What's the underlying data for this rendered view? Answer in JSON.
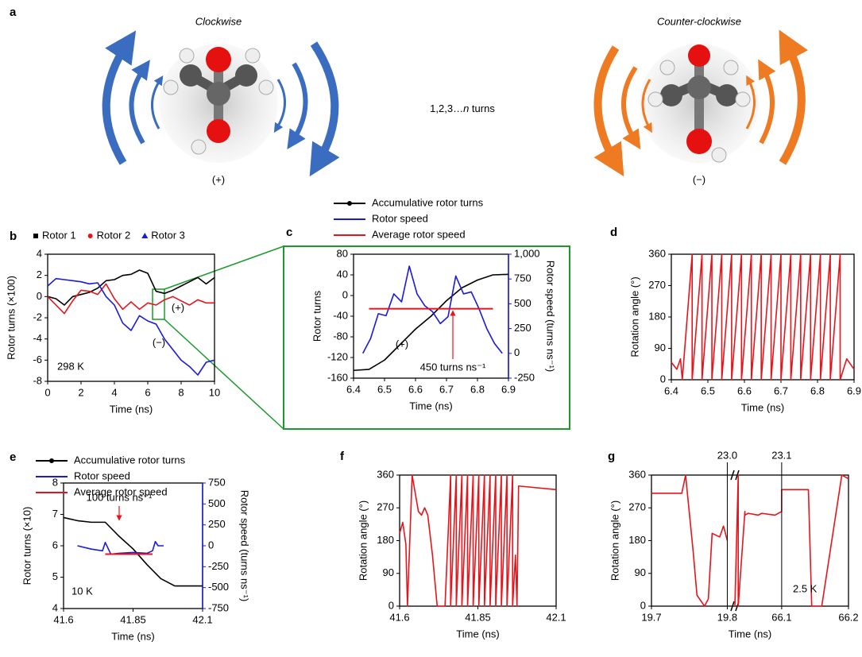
{
  "panel_a": {
    "label": "a",
    "left_title": "Clockwise",
    "right_title": "Counter-clockwise",
    "middle_prefix": "1,2,3…",
    "middle_italic": "n",
    "middle_suffix": " turns",
    "left_sign": "(+)",
    "right_sign": "(−)"
  },
  "chart_data": [
    {
      "type": "line",
      "label": "b",
      "xlabel": "Time (ns)",
      "ylabel": "Rotor turns (×100)",
      "xlim": [
        0,
        10
      ],
      "xticks": [
        0,
        2,
        4,
        6,
        8,
        10
      ],
      "ylim": [
        -8,
        4
      ],
      "yticks": [
        -8,
        -6,
        -4,
        -2,
        0,
        2,
        4
      ],
      "series": [
        {
          "name": "Rotor 1",
          "color": "#000000",
          "marker": "square",
          "x": [
            0,
            0.5,
            1,
            1.5,
            2,
            2.5,
            3,
            3.5,
            4,
            4.5,
            5,
            5.5,
            6,
            6.5,
            7,
            7.5,
            8,
            8.5,
            9,
            9.5,
            10
          ],
          "values": [
            0,
            -0.2,
            -0.8,
            0,
            0.2,
            0.4,
            0.8,
            1.5,
            1.6,
            2,
            2.1,
            2.5,
            2.2,
            0.5,
            0.3,
            0.6,
            1,
            1.4,
            1.8,
            1.2,
            1.8
          ]
        },
        {
          "name": "Rotor 2",
          "color": "#e8141c",
          "marker": "circle",
          "x": [
            0,
            0.5,
            1,
            1.5,
            2,
            2.5,
            3,
            3.5,
            4,
            4.5,
            5,
            5.5,
            6,
            6.5,
            7,
            7.5,
            8,
            8.5,
            9,
            9.5,
            10
          ],
          "values": [
            0,
            -0.8,
            -1.6,
            -0.4,
            0.6,
            0.5,
            0.2,
            1.2,
            -0.2,
            -1.2,
            -0.5,
            -1.2,
            -0.6,
            -0.8,
            -0.3,
            0,
            -0.4,
            -0.8,
            -0.3,
            -0.6,
            -0.6
          ]
        },
        {
          "name": "Rotor 3",
          "color": "#1a1adc",
          "marker": "triangle",
          "x": [
            0,
            0.5,
            1,
            1.5,
            2,
            2.5,
            3,
            3.5,
            4,
            4.5,
            5,
            5.5,
            6,
            6.5,
            7,
            7.5,
            8,
            8.5,
            9,
            9.5,
            10
          ],
          "values": [
            1,
            1.7,
            1.6,
            1.5,
            1.4,
            1.2,
            1.3,
            0,
            -0.8,
            -2.5,
            -3.2,
            -1.8,
            -2.3,
            -2.6,
            -4,
            -5,
            -6,
            -6.6,
            -7.4,
            -6.2,
            -6
          ]
        }
      ],
      "annotations": [
        {
          "text": "298 K",
          "color": "#000000"
        },
        {
          "text": "(+)",
          "color": "#e8141c"
        },
        {
          "text": "(−)",
          "color": "#1a1adc"
        }
      ]
    },
    {
      "type": "line",
      "label": "c",
      "xlabel": "Time (ns)",
      "ylabel": "Rotor turns",
      "y2label": "Rotor speed (turns ns⁻¹)",
      "y2color": "#1a1adc",
      "xlim": [
        6.4,
        6.9
      ],
      "xticks": [
        6.4,
        6.5,
        6.6,
        6.7,
        6.8,
        6.9
      ],
      "ylim": [
        -160,
        80
      ],
      "yticks": [
        -160,
        -120,
        -80,
        -40,
        0,
        40,
        80
      ],
      "y2lim": [
        -250,
        1000
      ],
      "y2ticks": [
        -250,
        0,
        250,
        500,
        750,
        {
          "value": 1000,
          "label": "1,000"
        }
      ],
      "series": [
        {
          "name": "Accumulative rotor turns",
          "color": "#000000",
          "marker": "dot",
          "x": [
            6.4,
            6.45,
            6.5,
            6.55,
            6.6,
            6.65,
            6.7,
            6.75,
            6.8,
            6.85,
            6.9
          ],
          "values": [
            -145,
            -143,
            -125,
            -95,
            -65,
            -40,
            -10,
            15,
            30,
            40,
            41
          ]
        },
        {
          "name": "Rotor speed",
          "color": "#1a1adc",
          "axis": "y2",
          "x": [
            6.43,
            6.455,
            6.48,
            6.505,
            6.53,
            6.555,
            6.58,
            6.605,
            6.63,
            6.655,
            6.68,
            6.705,
            6.73,
            6.755,
            6.78,
            6.805,
            6.83,
            6.855,
            6.88
          ],
          "values": [
            0,
            150,
            400,
            380,
            600,
            520,
            880,
            600,
            480,
            420,
            300,
            370,
            780,
            600,
            620,
            450,
            250,
            100,
            0
          ]
        },
        {
          "name": "Average rotor speed",
          "color": "#e8141c",
          "axis": "y2",
          "x": [
            6.45,
            6.85
          ],
          "values": [
            450,
            450
          ]
        }
      ],
      "annotations": [
        {
          "text": "(+)",
          "color": "#000000"
        },
        {
          "text": "450 turns ns⁻¹",
          "color": "#e8141c"
        }
      ]
    },
    {
      "type": "line",
      "label": "d",
      "xlabel": "Time (ns)",
      "ylabel": "Rotation angle (°)",
      "xlim": [
        6.4,
        6.9
      ],
      "xticks": [
        6.4,
        6.5,
        6.6,
        6.7,
        6.8,
        6.9
      ],
      "ylim": [
        0,
        360
      ],
      "yticks": [
        0,
        90,
        180,
        270,
        360
      ],
      "series": [
        {
          "color": "#e8141c",
          "x": [
            6.4,
            6.415,
            6.425,
            6.43,
            6.457,
            6.457,
            6.484,
            6.484,
            6.511,
            6.511,
            6.538,
            6.538,
            6.565,
            6.565,
            6.592,
            6.592,
            6.619,
            6.619,
            6.646,
            6.646,
            6.673,
            6.673,
            6.7,
            6.7,
            6.727,
            6.727,
            6.754,
            6.754,
            6.781,
            6.781,
            6.808,
            6.808,
            6.835,
            6.835,
            6.862,
            6.862,
            6.88,
            6.9
          ],
          "values": [
            50,
            30,
            60,
            0,
            360,
            0,
            360,
            0,
            360,
            0,
            360,
            0,
            360,
            0,
            360,
            0,
            360,
            0,
            360,
            0,
            360,
            0,
            360,
            0,
            360,
            0,
            360,
            0,
            360,
            0,
            360,
            0,
            360,
            0,
            360,
            0,
            60,
            30
          ]
        }
      ]
    },
    {
      "type": "line",
      "label": "e",
      "xlabel": "Time (ns)",
      "ylabel": "Rotor turns (×10)",
      "y2label": "Rotor speed (turns ns⁻¹)",
      "y2color": "#1a1adc",
      "xlim": [
        41.6,
        42.1
      ],
      "xticks": [
        41.6,
        41.85,
        42.1
      ],
      "ylim": [
        4,
        8
      ],
      "yticks": [
        4,
        5,
        6,
        7,
        8
      ],
      "y2lim": [
        -750,
        750
      ],
      "y2ticks": [
        -750,
        -500,
        -250,
        0,
        250,
        500,
        750
      ],
      "series": [
        {
          "name": "Accumulative rotor turns",
          "color": "#000000",
          "marker": "dot",
          "x": [
            41.6,
            41.65,
            41.7,
            41.75,
            41.8,
            41.85,
            41.9,
            41.95,
            42.0,
            42.05,
            42.1
          ],
          "values": [
            6.9,
            6.8,
            6.75,
            6.75,
            6.3,
            5.9,
            5.4,
            4.95,
            4.72,
            4.72,
            4.72
          ]
        },
        {
          "name": "Rotor speed",
          "color": "#1a1adc",
          "axis": "y2",
          "x": [
            41.65,
            41.7,
            41.74,
            41.75,
            41.77,
            41.8,
            41.85,
            41.9,
            41.92,
            41.93,
            41.94,
            41.96
          ],
          "values": [
            0,
            -40,
            -60,
            40,
            -100,
            -90,
            -80,
            -90,
            -60,
            50,
            0,
            0
          ]
        },
        {
          "name": "Average rotor speed",
          "color": "#e8141c",
          "axis": "y2",
          "x": [
            41.75,
            41.92
          ],
          "values": [
            -100,
            -100
          ]
        }
      ],
      "annotations": [
        {
          "text": "100 turns ns⁻¹",
          "color": "#e8141c"
        },
        {
          "text": "10 K",
          "color": "#000000"
        }
      ]
    },
    {
      "type": "line",
      "label": "f",
      "xlabel": "Time (ns)",
      "ylabel": "Rotation angle (°)",
      "xlim": [
        41.6,
        42.1
      ],
      "xticks": [
        41.6,
        41.85,
        42.1
      ],
      "ylim": [
        0,
        360
      ],
      "yticks": [
        0,
        90,
        180,
        270,
        360
      ],
      "series": [
        {
          "color": "#e8141c",
          "x": [
            41.6,
            41.61,
            41.62,
            41.625,
            41.64,
            41.66,
            41.67,
            41.68,
            41.69,
            41.705,
            41.72,
            41.745,
            41.763,
            41.763,
            41.781,
            41.781,
            41.799,
            41.799,
            41.817,
            41.817,
            41.835,
            41.835,
            41.853,
            41.853,
            41.871,
            41.871,
            41.889,
            41.889,
            41.907,
            41.907,
            41.925,
            41.925,
            41.943,
            41.943,
            41.961,
            41.961,
            41.97,
            41.975,
            41.98,
            42.1
          ],
          "values": [
            200,
            230,
            170,
            0,
            360,
            260,
            250,
            270,
            250,
            140,
            0,
            0,
            360,
            0,
            360,
            0,
            360,
            0,
            360,
            0,
            360,
            0,
            360,
            0,
            360,
            0,
            360,
            0,
            360,
            0,
            360,
            0,
            360,
            0,
            360,
            0,
            140,
            0,
            330,
            320
          ]
        }
      ]
    },
    {
      "type": "line",
      "label": "g",
      "xlabel": "Time (ns)",
      "ylabel": "Rotation angle (°)",
      "xlim": [
        19.7,
        19.81
      ],
      "xticks": [
        19.7,
        19.8
      ],
      "x2lim": [
        66.03,
        66.2
      ],
      "x2ticks": [
        66.1,
        66.2
      ],
      "ylim": [
        0,
        360
      ],
      "yticks": [
        0,
        90,
        180,
        270,
        360
      ],
      "series": [
        {
          "color": "#e8141c",
          "x": [
            19.7,
            19.74,
            19.745,
            19.755,
            19.76,
            19.77,
            19.775,
            19.78,
            19.79,
            19.795,
            19.8
          ],
          "values": [
            310,
            310,
            360,
            150,
            30,
            0,
            20,
            200,
            190,
            220,
            180
          ]
        },
        {
          "color": "#e8141c",
          "axis": "x2",
          "x": [
            66.03,
            66.035,
            66.035,
            66.045,
            66.045,
            66.05,
            66.065,
            66.07,
            66.09,
            66.1,
            66.1,
            66.14,
            66.145,
            66.16,
            66.19,
            66.2
          ],
          "values": [
            0,
            360,
            0,
            260,
            250,
            255,
            250,
            255,
            250,
            260,
            320,
            320,
            0,
            0,
            360,
            350
          ]
        }
      ],
      "vlines": [
        {
          "label": "23.0",
          "x": 19.8,
          "axis": "x"
        },
        {
          "label": "23.1",
          "x": 66.1,
          "axis": "x2"
        }
      ],
      "annotations": [
        {
          "text": "2.5 K",
          "color": "#000000"
        }
      ]
    }
  ]
}
